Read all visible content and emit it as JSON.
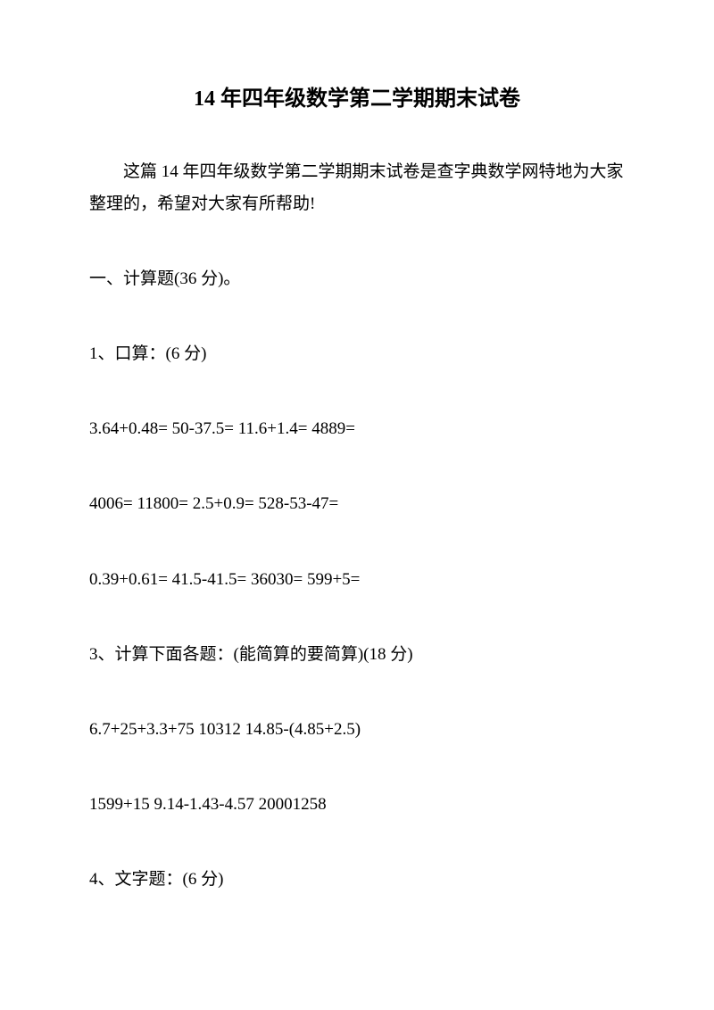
{
  "title": "14 年四年级数学第二学期期末试卷",
  "intro": "这篇 14 年四年级数学第二学期期末试卷是查字典数学网特地为大家整理的，希望对大家有所帮助!",
  "section1": "一、计算题(36 分)。",
  "q1_header": "1、口算：(6 分)",
  "q1_line1": "3.64+0.48= 50-37.5= 11.6+1.4= 4889=",
  "q1_line2": "4006= 11800= 2.5+0.9= 528-53-47=",
  "q1_line3": "0.39+0.61= 41.5-41.5= 36030= 599+5=",
  "q3_header": "3、计算下面各题：(能简算的要简算)(18 分)",
  "q3_line1": "6.7+25+3.3+75 10312 14.85-(4.85+2.5)",
  "q3_line2": "1599+15 9.14-1.43-4.57 20001258",
  "q4_header": "4、文字题：(6 分)",
  "styles": {
    "title_fontsize": 24,
    "body_fontsize": 19,
    "text_color": "#000000",
    "background_color": "#ffffff",
    "line_height": 1.9
  }
}
